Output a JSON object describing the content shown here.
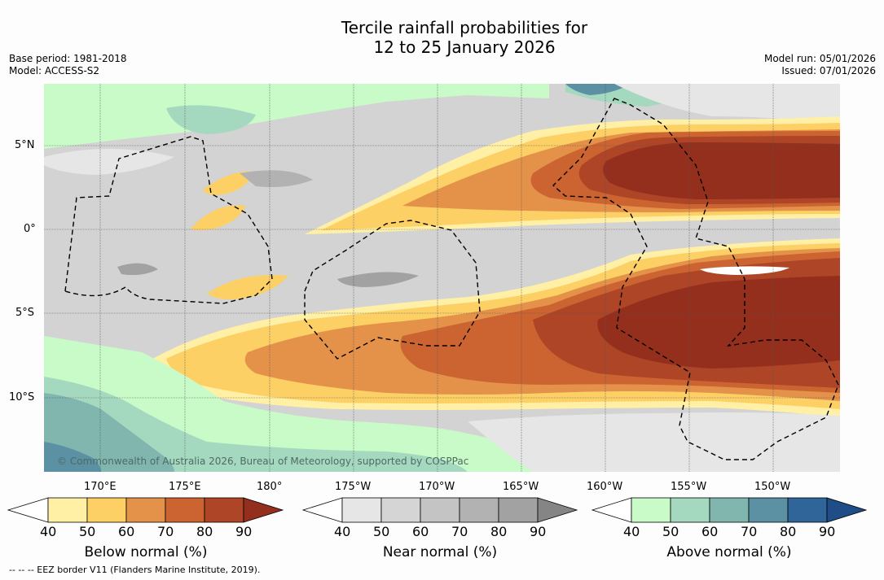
{
  "header": {
    "title_line1": "Tercile rainfall probabilities for",
    "title_line2": "12 to 25 January 2026",
    "base_period": "Base period: 1981-2018",
    "model": "Model: ACCESS-S2",
    "model_run": "Model run: 05/01/2026",
    "issued": "Issued: 07/01/2026"
  },
  "map": {
    "credit": "© Commonwealth of Australia 2026, Bureau of Meteorology, supported by COSPPac",
    "lat_labels": [
      "5°N",
      "0°",
      "5°S",
      "10°S"
    ],
    "lon_labels": [
      "170°E",
      "175°E",
      "180°",
      "175°W",
      "170°W",
      "165°W",
      "160°W",
      "155°W",
      "150°W"
    ],
    "colors": {
      "below": [
        "#fff0a6",
        "#fdd066",
        "#e4924a",
        "#cc6432",
        "#ad4526",
        "#952f1d"
      ],
      "near": [
        "#e6e6e6",
        "#d5d5d5",
        "#c4c4c4",
        "#b2b2b2",
        "#a2a2a2",
        "#858585"
      ],
      "above": [
        "#c8fbc8",
        "#a5d9bf",
        "#80b6ae",
        "#5b91a3",
        "#30659a",
        "#1e4d88"
      ],
      "water": "#ffffff",
      "eez_border": "#000000"
    }
  },
  "colorbars": [
    {
      "label": "Below normal (%)",
      "ticks": [
        "40",
        "50",
        "60",
        "70",
        "80",
        "90"
      ]
    },
    {
      "label": "Near normal (%)",
      "ticks": [
        "40",
        "50",
        "60",
        "70",
        "80",
        "90"
      ]
    },
    {
      "label": "Above normal (%)",
      "ticks": [
        "40",
        "50",
        "60",
        "70",
        "80",
        "90"
      ]
    }
  ],
  "legend": {
    "footnote": "--  --  -- EEZ border V11 (Flanders Marine Institute, 2019)."
  }
}
